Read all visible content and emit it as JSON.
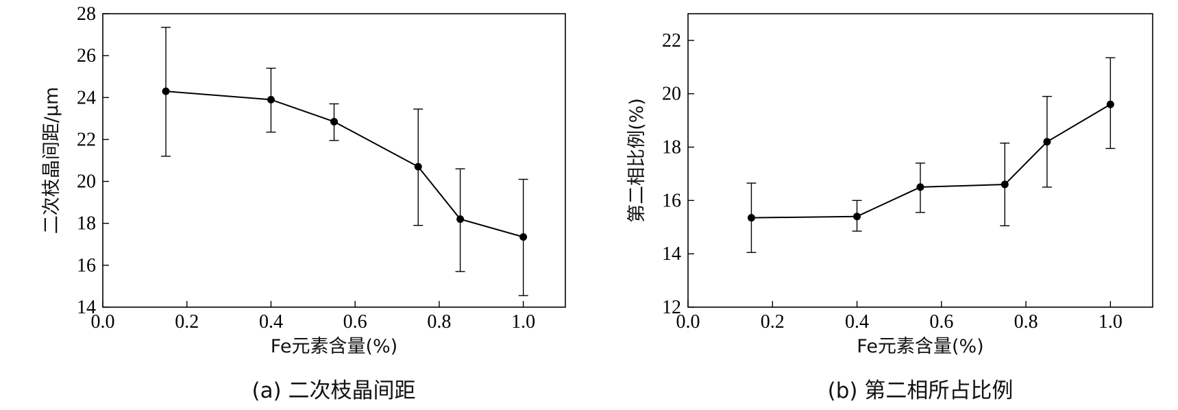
{
  "chart_data": [
    {
      "type": "line",
      "title": "",
      "caption": "(a) 二次枝晶间距",
      "xlabel": "Fe元素含量(%)",
      "ylabel": "二次枝晶间距/μm",
      "xlim": [
        0.0,
        1.1
      ],
      "ylim": [
        14,
        28
      ],
      "xticks": [
        0.0,
        0.2,
        0.4,
        0.6,
        0.8,
        1.0
      ],
      "yticks": [
        14,
        16,
        18,
        20,
        22,
        24,
        26,
        28
      ],
      "x": [
        0.15,
        0.4,
        0.55,
        0.75,
        0.85,
        1.0
      ],
      "y": [
        24.3,
        23.9,
        22.85,
        20.7,
        18.2,
        17.35
      ],
      "err_low": [
        21.2,
        22.35,
        21.95,
        17.9,
        15.7,
        14.55
      ],
      "err_high": [
        27.35,
        25.4,
        23.7,
        23.45,
        20.6,
        20.1
      ],
      "grid": false,
      "legend": "none"
    },
    {
      "type": "line",
      "title": "",
      "caption": "(b) 第二相所占比例",
      "xlabel": "Fe元素含量(%)",
      "ylabel": "第二相比例(%)",
      "xlim": [
        0.0,
        1.1
      ],
      "ylim": [
        12,
        23
      ],
      "xticks": [
        0.0,
        0.2,
        0.4,
        0.6,
        0.8,
        1.0
      ],
      "yticks": [
        12,
        14,
        16,
        18,
        20,
        22
      ],
      "x": [
        0.15,
        0.4,
        0.55,
        0.75,
        0.85,
        1.0
      ],
      "y": [
        15.35,
        15.4,
        16.5,
        16.6,
        18.2,
        19.6
      ],
      "err_low": [
        14.05,
        14.85,
        15.55,
        15.05,
        16.5,
        17.95
      ],
      "err_high": [
        16.65,
        16.0,
        17.4,
        18.15,
        19.9,
        21.35
      ],
      "grid": false,
      "legend": "none"
    }
  ]
}
